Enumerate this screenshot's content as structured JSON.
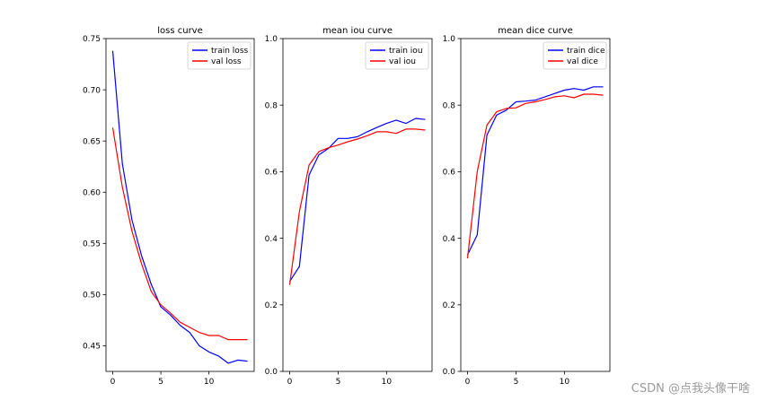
{
  "chart_data": [
    {
      "type": "line",
      "title": "loss curve",
      "xlabel": "",
      "ylabel": "",
      "x": [
        0,
        1,
        2,
        3,
        4,
        5,
        6,
        7,
        8,
        9,
        10,
        11,
        12,
        13,
        14
      ],
      "xlim": [
        -0.7,
        14.7
      ],
      "ylim": [
        0.425,
        0.75
      ],
      "xticks": [
        0,
        5,
        10
      ],
      "yticks": [
        0.45,
        0.5,
        0.55,
        0.6,
        0.65,
        0.7,
        0.75
      ],
      "ytick_labels": [
        "0.45",
        "0.50",
        "0.55",
        "0.60",
        "0.65",
        "0.70",
        "0.75"
      ],
      "legend_position": "top-right",
      "series": [
        {
          "name": "train loss",
          "color": "#0000ff",
          "values": [
            0.738,
            0.628,
            0.573,
            0.538,
            0.51,
            0.488,
            0.48,
            0.47,
            0.463,
            0.45,
            0.444,
            0.44,
            0.433,
            0.436,
            0.435
          ]
        },
        {
          "name": "val loss",
          "color": "#ff0000",
          "values": [
            0.663,
            0.605,
            0.562,
            0.53,
            0.503,
            0.49,
            0.482,
            0.473,
            0.468,
            0.463,
            0.46,
            0.46,
            0.456,
            0.456,
            0.456
          ]
        }
      ]
    },
    {
      "type": "line",
      "title": "mean iou curve",
      "xlabel": "",
      "ylabel": "",
      "x": [
        0,
        1,
        2,
        3,
        4,
        5,
        6,
        7,
        8,
        9,
        10,
        11,
        12,
        13,
        14
      ],
      "xlim": [
        -0.7,
        14.7
      ],
      "ylim": [
        0,
        1
      ],
      "xticks": [
        0,
        5,
        10
      ],
      "yticks": [
        0,
        0.2,
        0.4,
        0.6,
        0.8,
        1.0
      ],
      "ytick_labels": [
        "0.0",
        "0.2",
        "0.4",
        "0.6",
        "0.8",
        "1.0"
      ],
      "legend_position": "top-right",
      "series": [
        {
          "name": "train iou",
          "color": "#0000ff",
          "values": [
            0.27,
            0.315,
            0.59,
            0.65,
            0.67,
            0.7,
            0.7,
            0.705,
            0.72,
            0.733,
            0.745,
            0.755,
            0.745,
            0.76,
            0.757
          ]
        },
        {
          "name": "val iou",
          "color": "#ff0000",
          "values": [
            0.26,
            0.48,
            0.62,
            0.66,
            0.672,
            0.68,
            0.69,
            0.698,
            0.708,
            0.72,
            0.72,
            0.715,
            0.728,
            0.728,
            0.725
          ]
        }
      ]
    },
    {
      "type": "line",
      "title": "mean dice curve",
      "xlabel": "",
      "ylabel": "",
      "x": [
        0,
        1,
        2,
        3,
        4,
        5,
        6,
        7,
        8,
        9,
        10,
        11,
        12,
        13,
        14
      ],
      "xlim": [
        -0.7,
        14.7
      ],
      "ylim": [
        0,
        1
      ],
      "xticks": [
        0,
        5,
        10
      ],
      "yticks": [
        0,
        0.2,
        0.4,
        0.6,
        0.8,
        1.0
      ],
      "ytick_labels": [
        "0.0",
        "0.2",
        "0.4",
        "0.6",
        "0.8",
        "1.0"
      ],
      "legend_position": "top-right",
      "series": [
        {
          "name": "train dice",
          "color": "#0000ff",
          "values": [
            0.35,
            0.41,
            0.71,
            0.77,
            0.785,
            0.81,
            0.812,
            0.815,
            0.825,
            0.835,
            0.845,
            0.85,
            0.845,
            0.855,
            0.855
          ]
        },
        {
          "name": "val dice",
          "color": "#ff0000",
          "values": [
            0.34,
            0.6,
            0.74,
            0.78,
            0.79,
            0.792,
            0.805,
            0.81,
            0.817,
            0.825,
            0.828,
            0.822,
            0.833,
            0.833,
            0.83
          ]
        }
      ]
    }
  ],
  "watermark": "CSDN @点我头像干啥"
}
